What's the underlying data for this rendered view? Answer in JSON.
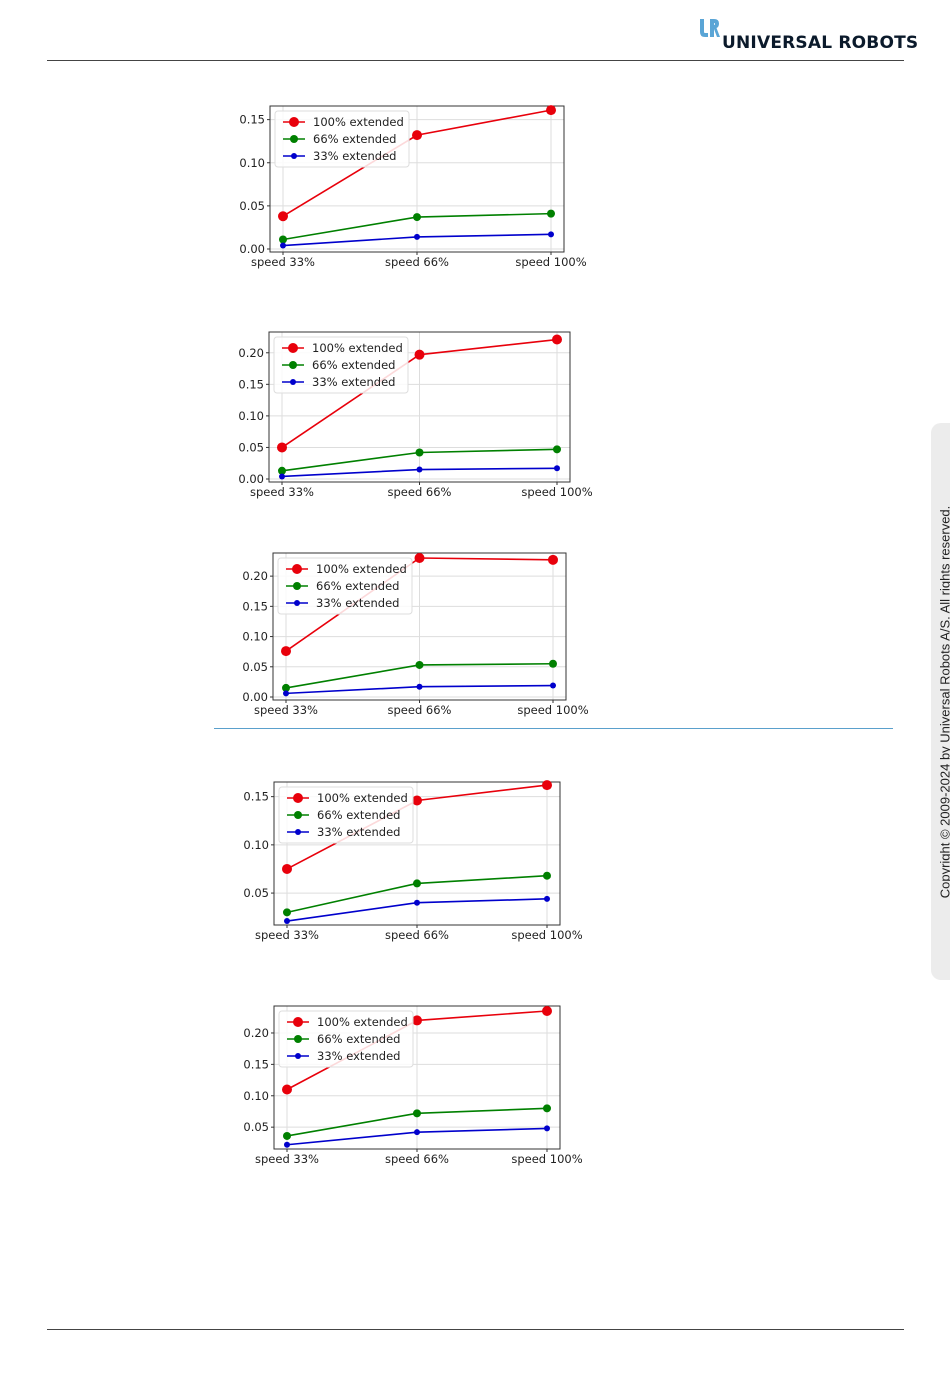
{
  "header": {
    "logo_text": "UNIVERSAL ROBOTS",
    "logo_color": "#5aa5d6"
  },
  "sidebar": {
    "copyright": "Copyright © 2009-2024 by Universal Robots A/S. All rights reserved."
  },
  "colors": {
    "series_100": "#e8000b",
    "series_66": "#008000",
    "series_33": "#0000cc",
    "divider": "#5aa0cc"
  },
  "chart_data": [
    {
      "type": "line",
      "categories": [
        "speed 33%",
        "speed 66%",
        "speed 100%"
      ],
      "ylim": [
        0.0,
        0.16
      ],
      "yticks": [
        "0.00",
        "0.05",
        "0.10",
        "0.15"
      ],
      "grid": true,
      "legend": "top-left",
      "series": [
        {
          "name": "100% extended",
          "values": [
            0.038,
            0.132,
            0.161
          ]
        },
        {
          "name": "66% extended",
          "values": [
            0.011,
            0.037,
            0.041
          ]
        },
        {
          "name": "33% extended",
          "values": [
            0.004,
            0.014,
            0.017
          ]
        }
      ]
    },
    {
      "type": "line",
      "categories": [
        "speed 33%",
        "speed 66%",
        "speed 100%"
      ],
      "ylim": [
        0.0,
        0.225
      ],
      "yticks": [
        "0.00",
        "0.05",
        "0.10",
        "0.15",
        "0.20"
      ],
      "grid": true,
      "legend": "top-left",
      "series": [
        {
          "name": "100% extended",
          "values": [
            0.05,
            0.197,
            0.221
          ]
        },
        {
          "name": "66% extended",
          "values": [
            0.013,
            0.042,
            0.047
          ]
        },
        {
          "name": "33% extended",
          "values": [
            0.004,
            0.015,
            0.017
          ]
        }
      ]
    },
    {
      "type": "line",
      "categories": [
        "speed 33%",
        "speed 66%",
        "speed 100%"
      ],
      "ylim": [
        0.0,
        0.23
      ],
      "yticks": [
        "0.00",
        "0.05",
        "0.10",
        "0.15",
        "0.20"
      ],
      "grid": true,
      "legend": "top-left",
      "series": [
        {
          "name": "100% extended",
          "values": [
            0.076,
            0.23,
            0.227
          ]
        },
        {
          "name": "66% extended",
          "values": [
            0.015,
            0.053,
            0.055
          ]
        },
        {
          "name": "33% extended",
          "values": [
            0.006,
            0.017,
            0.019
          ]
        }
      ]
    },
    {
      "type": "line",
      "categories": [
        "speed 33%",
        "speed 66%",
        "speed 100%"
      ],
      "ylim": [
        0.02,
        0.16
      ],
      "yticks": [
        "0.05",
        "0.10",
        "0.15"
      ],
      "grid": true,
      "legend": "top-left",
      "series": [
        {
          "name": "100% extended",
          "values": [
            0.075,
            0.146,
            0.162
          ]
        },
        {
          "name": "66% extended",
          "values": [
            0.03,
            0.06,
            0.068
          ]
        },
        {
          "name": "33% extended",
          "values": [
            0.021,
            0.04,
            0.044
          ]
        }
      ]
    },
    {
      "type": "line",
      "categories": [
        "speed 33%",
        "speed 66%",
        "speed 100%"
      ],
      "ylim": [
        0.02,
        0.235
      ],
      "yticks": [
        "0.05",
        "0.10",
        "0.15",
        "0.20"
      ],
      "grid": true,
      "legend": "top-left",
      "series": [
        {
          "name": "100% extended",
          "values": [
            0.11,
            0.22,
            0.235
          ]
        },
        {
          "name": "66% extended",
          "values": [
            0.036,
            0.072,
            0.08
          ]
        },
        {
          "name": "33% extended",
          "values": [
            0.022,
            0.042,
            0.048
          ]
        }
      ]
    }
  ]
}
